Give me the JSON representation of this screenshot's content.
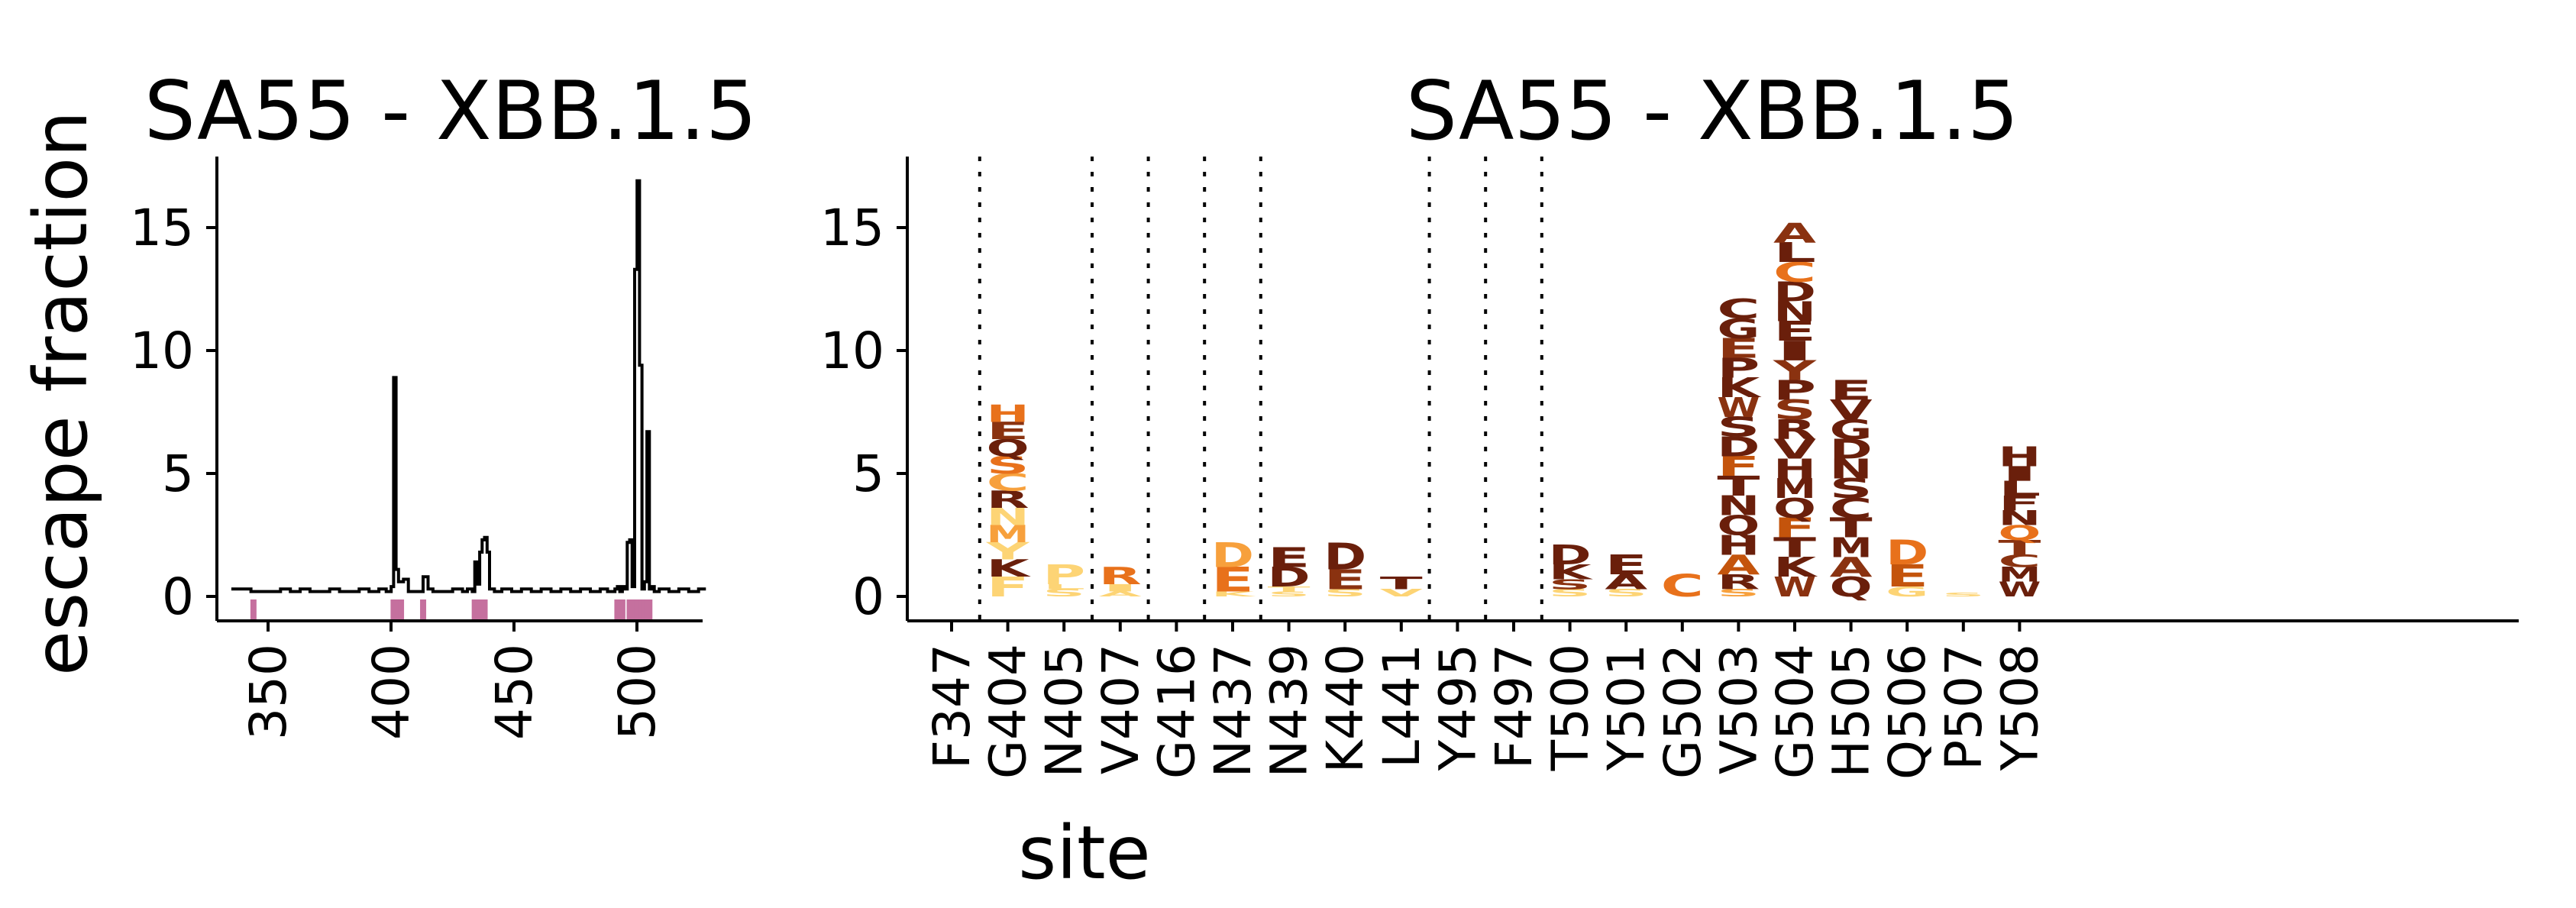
{
  "chart_data": [
    {
      "type": "line",
      "title": "SA55 - XBB.1.5",
      "xlabel": "",
      "ylabel": "escape fraction",
      "xlim": [
        334,
        535
      ],
      "ylim": [
        -1,
        18
      ],
      "xticks": [
        "350",
        "400",
        "450",
        "500"
      ],
      "yticks": [
        "0",
        "5",
        "10",
        "15"
      ],
      "line_color": "#000000",
      "highlight_color": "#c5709e",
      "series": [
        {
          "x": [
            338,
            342,
            346,
            350,
            354,
            358,
            362,
            366,
            370,
            374,
            378,
            382,
            386,
            390,
            394,
            398,
            401,
            403,
            404,
            405,
            406,
            408,
            410,
            413,
            416,
            418,
            420,
            424,
            428,
            432,
            434,
            436,
            437,
            438,
            439,
            440,
            441,
            442,
            443,
            445,
            448,
            452,
            456,
            460,
            464,
            468,
            472,
            476,
            480,
            484,
            488,
            491,
            494,
            495,
            496,
            497,
            498,
            499,
            500,
            501,
            502,
            503,
            504,
            505,
            506,
            507,
            508,
            509,
            510,
            512,
            516,
            520,
            524,
            528,
            531
          ],
          "y": [
            0.3,
            0.3,
            0.2,
            0.2,
            0.2,
            0.3,
            0.2,
            0.3,
            0.2,
            0.2,
            0.3,
            0.2,
            0.2,
            0.3,
            0.2,
            0.3,
            0.2,
            0.4,
            8.9,
            1.1,
            0.6,
            0.7,
            0.2,
            0.2,
            0.8,
            0.3,
            0.2,
            0.2,
            0.3,
            0.2,
            0.3,
            0.2,
            1.4,
            0.5,
            1.8,
            2.3,
            2.4,
            1.8,
            0.3,
            0.2,
            0.3,
            0.2,
            0.3,
            0.2,
            0.3,
            0.2,
            0.3,
            0.2,
            0.3,
            0.2,
            0.3,
            0.2,
            0.3,
            0.4,
            0.2,
            0.4,
            0.3,
            2.2,
            2.3,
            0.4,
            13.3,
            16.9,
            9.4,
            0.3,
            0.6,
            6.7,
            0.3,
            0.4,
            0.2,
            0.3,
            0.2,
            0.3,
            0.2,
            0.3,
            0.3
          ]
        }
      ],
      "highlight_sites": [
        347,
        404,
        405,
        407,
        416,
        437,
        439,
        440,
        441,
        495,
        497,
        500,
        501,
        502,
        503,
        504,
        505,
        506,
        507,
        508
      ]
    },
    {
      "type": "logo",
      "title": "SA55 - XBB.1.5",
      "xlabel": "site",
      "ylabel": "",
      "ylim": [
        -1,
        18
      ],
      "yticks": [
        "0",
        "5",
        "10",
        "15"
      ],
      "sites": [
        "F347",
        "G404",
        "N405",
        "V407",
        "G416",
        "N437",
        "N439",
        "K440",
        "L441",
        "Y495",
        "F497",
        "T500",
        "Y501",
        "G502",
        "V503",
        "G504",
        "H505",
        "Q506",
        "P507",
        "Y508"
      ],
      "groups": [
        [
          0
        ],
        [
          1,
          2
        ],
        [
          3
        ],
        [
          4
        ],
        [
          5
        ],
        [
          6,
          7,
          8
        ],
        [
          9
        ],
        [
          10
        ],
        [
          11,
          12,
          13,
          14,
          15,
          16,
          17,
          18,
          19
        ]
      ],
      "color_scale": [
        "#fdd475",
        "#f7a03c",
        "#e8711b",
        "#c4540c",
        "#8a3210",
        "#6a1f0b"
      ],
      "stacks": [
        {
          "site": "F347",
          "letters": []
        },
        {
          "site": "G404",
          "letters": [
            [
              "F",
              0.8,
              0
            ],
            [
              "K",
              0.7,
              5
            ],
            [
              "Y",
              0.7,
              0
            ],
            [
              "M",
              0.7,
              1
            ],
            [
              "N",
              0.7,
              0
            ],
            [
              "R",
              0.7,
              5
            ],
            [
              "C",
              0.7,
              1
            ],
            [
              "S",
              0.7,
              2
            ],
            [
              "Q",
              0.7,
              5
            ],
            [
              "E",
              0.7,
              4
            ],
            [
              "H",
              0.7,
              2
            ]
          ]
        },
        {
          "site": "N405",
          "letters": [
            [
              "S",
              0.3,
              0
            ],
            [
              "L",
              0.2,
              0
            ],
            [
              "P",
              0.8,
              0
            ]
          ]
        },
        {
          "site": "V407",
          "letters": [
            [
              "A",
              0.2,
              0
            ],
            [
              "I",
              0.3,
              0
            ],
            [
              "R",
              0.7,
              2
            ]
          ]
        },
        {
          "site": "G416",
          "letters": []
        },
        {
          "site": "N437",
          "letters": [
            [
              "K",
              0.2,
              0
            ],
            [
              "E",
              1.0,
              2
            ],
            [
              "D",
              1.0,
              1
            ]
          ]
        },
        {
          "site": "N439",
          "letters": [
            [
              "S",
              0.2,
              0
            ],
            [
              "T",
              0.2,
              0
            ],
            [
              "D",
              0.8,
              5
            ],
            [
              "E",
              0.8,
              5
            ]
          ]
        },
        {
          "site": "K440",
          "letters": [
            [
              "S",
              0.3,
              0
            ],
            [
              "E",
              0.8,
              4
            ],
            [
              "D",
              1.1,
              5
            ]
          ]
        },
        {
          "site": "L441",
          "letters": [
            [
              "V",
              0.3,
              0
            ],
            [
              "T",
              0.5,
              5
            ]
          ]
        },
        {
          "site": "Y495",
          "letters": []
        },
        {
          "site": "F497",
          "letters": []
        },
        {
          "site": "T500",
          "letters": [
            [
              "S",
              0.3,
              0
            ],
            [
              "S",
              0.4,
              4
            ],
            [
              "K",
              0.6,
              5
            ],
            [
              "D",
              0.8,
              5
            ]
          ]
        },
        {
          "site": "Y501",
          "letters": [
            [
              "S",
              0.3,
              0
            ],
            [
              "A",
              0.6,
              5
            ],
            [
              "E",
              0.8,
              5
            ]
          ]
        },
        {
          "site": "G502",
          "letters": [
            [
              "C",
              0.9,
              2
            ]
          ]
        },
        {
          "site": "V503",
          "letters": [
            [
              "S",
              0.3,
              1
            ],
            [
              "R",
              0.6,
              5
            ],
            [
              "A",
              0.8,
              3
            ],
            [
              "H",
              0.8,
              5
            ],
            [
              "Q",
              0.8,
              5
            ],
            [
              "N",
              0.8,
              5
            ],
            [
              "T",
              0.8,
              5
            ],
            [
              "F",
              0.8,
              3
            ],
            [
              "D",
              0.8,
              5
            ],
            [
              "S",
              0.8,
              5
            ],
            [
              "W",
              0.8,
              4
            ],
            [
              "K",
              0.8,
              5
            ],
            [
              "P",
              0.8,
              5
            ],
            [
              "E",
              0.8,
              4
            ],
            [
              "G",
              0.8,
              5
            ],
            [
              "C",
              0.8,
              5
            ]
          ]
        },
        {
          "site": "G504",
          "letters": [
            [
              "W",
              0.8,
              4
            ],
            [
              "K",
              0.8,
              5
            ],
            [
              "T",
              0.8,
              5
            ],
            [
              "F",
              0.8,
              3
            ],
            [
              "Q",
              0.8,
              5
            ],
            [
              "M",
              0.8,
              5
            ],
            [
              "H",
              0.8,
              5
            ],
            [
              "V",
              0.8,
              5
            ],
            [
              "R",
              0.8,
              5
            ],
            [
              "S",
              0.8,
              4
            ],
            [
              "P",
              0.8,
              5
            ],
            [
              "Y",
              0.8,
              4
            ],
            [
              "I",
              0.8,
              5
            ],
            [
              "E",
              0.8,
              5
            ],
            [
              "N",
              0.8,
              5
            ],
            [
              "D",
              0.8,
              5
            ],
            [
              "C",
              0.8,
              2
            ],
            [
              "L",
              0.8,
              5
            ],
            [
              "A",
              0.8,
              4
            ]
          ]
        },
        {
          "site": "H505",
          "letters": [
            [
              "Q",
              0.8,
              5
            ],
            [
              "A",
              0.8,
              4
            ],
            [
              "M",
              0.8,
              5
            ],
            [
              "T",
              0.8,
              5
            ],
            [
              "C",
              0.8,
              5
            ],
            [
              "S",
              0.8,
              5
            ],
            [
              "N",
              0.8,
              5
            ],
            [
              "D",
              0.8,
              5
            ],
            [
              "G",
              0.8,
              5
            ],
            [
              "V",
              0.8,
              5
            ],
            [
              "E",
              0.8,
              5
            ]
          ]
        },
        {
          "site": "Q506",
          "letters": [
            [
              "G",
              0.4,
              0
            ],
            [
              "E",
              0.9,
              3
            ],
            [
              "D",
              1.0,
              2
            ]
          ]
        },
        {
          "site": "P507",
          "letters": [
            [
              "S",
              0.15,
              0
            ]
          ]
        },
        {
          "site": "Y508",
          "letters": [
            [
              "W",
              0.6,
              5
            ],
            [
              "M",
              0.6,
              5
            ],
            [
              "C",
              0.5,
              4
            ],
            [
              "T",
              0.6,
              4
            ],
            [
              "Q",
              0.6,
              2
            ],
            [
              "N",
              0.6,
              5
            ],
            [
              "F",
              0.6,
              5
            ],
            [
              "L",
              0.6,
              5
            ],
            [
              "I",
              0.6,
              5
            ],
            [
              "H",
              0.8,
              5
            ]
          ]
        }
      ]
    }
  ]
}
